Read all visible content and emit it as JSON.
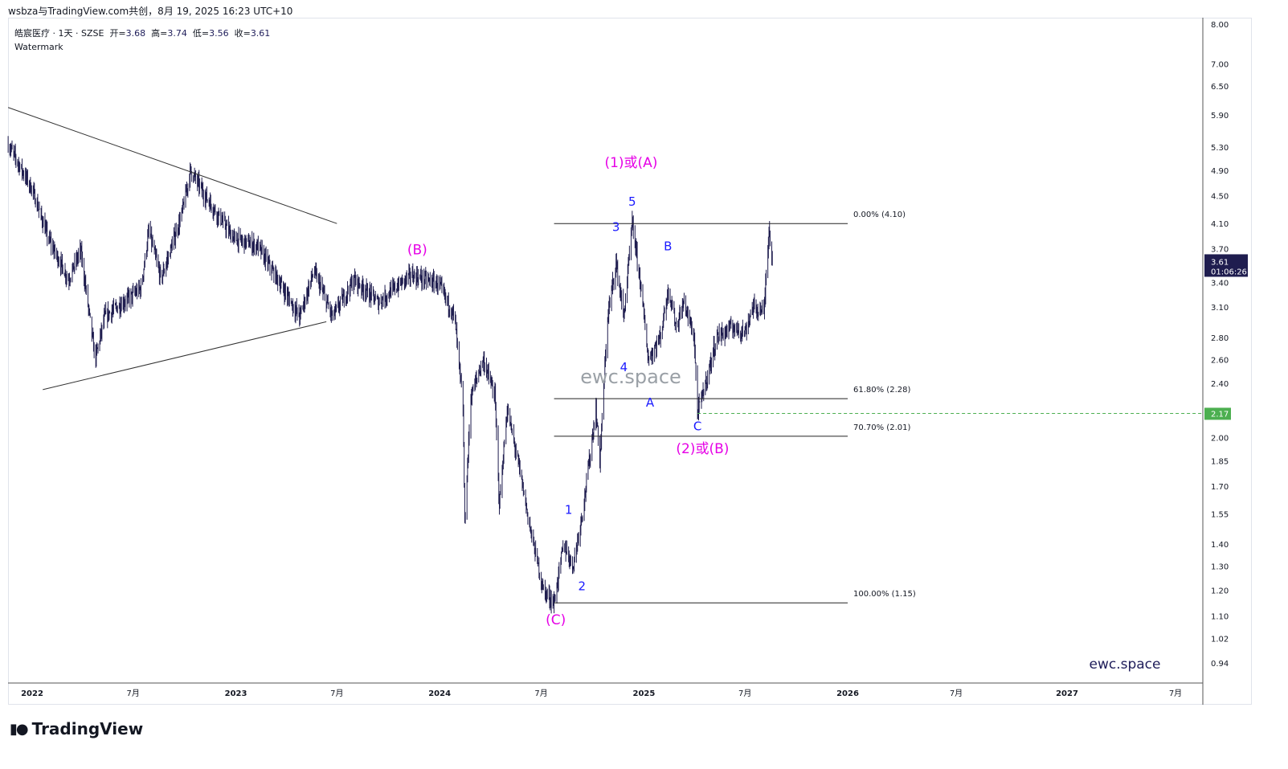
{
  "header": {
    "title": "wsbza与TradingView.com共创，8月 19, 2025 16:23 UTC+10"
  },
  "legend": {
    "symbol": "皓宸医疗 · 1天 · SZSE",
    "open_label": "开=",
    "open": "3.68",
    "high_label": "高=",
    "high": "3.74",
    "low_label": "低=",
    "low": "3.56",
    "close_label": "收=",
    "close": "3.61",
    "watermark_label": "Watermark"
  },
  "price_badge": {
    "price": "3.61",
    "countdown": "01:06:26",
    "color": "#1f1d4f"
  },
  "level_badge": {
    "price": "2.17",
    "color": "#4caf50"
  },
  "footer": {
    "brand": "TradingView"
  },
  "chart_data": {
    "type": "candlestick",
    "y_scale": "log",
    "ylim": [
      0.94,
      8.0
    ],
    "y_ticks": [
      "8.00",
      "7.00",
      "6.50",
      "5.90",
      "5.30",
      "4.90",
      "4.50",
      "4.10",
      "3.70",
      "3.40",
      "3.10",
      "2.80",
      "2.60",
      "2.40",
      "2.00",
      "1.85",
      "1.70",
      "1.55",
      "1.40",
      "1.30",
      "1.20",
      "1.10",
      "1.02",
      "0.94"
    ],
    "x_ticks": [
      {
        "label": "2022",
        "date": "2022-01-01",
        "bold": true
      },
      {
        "label": "7月",
        "date": "2022-07-01"
      },
      {
        "label": "2023",
        "date": "2023-01-01",
        "bold": true
      },
      {
        "label": "7月",
        "date": "2023-07-01"
      },
      {
        "label": "2024",
        "date": "2024-01-01",
        "bold": true
      },
      {
        "label": "7月",
        "date": "2024-07-01"
      },
      {
        "label": "2025",
        "date": "2025-01-01",
        "bold": true
      },
      {
        "label": "7月",
        "date": "2025-07-01"
      },
      {
        "label": "2026",
        "date": "2026-01-01",
        "bold": true
      },
      {
        "label": "7月",
        "date": "2026-07-01"
      },
      {
        "label": "2027",
        "date": "2027-01-01",
        "bold": true
      },
      {
        "label": "7月",
        "date": "2027-07-01"
      }
    ],
    "price_path": [
      [
        "2021-11-19",
        5.35
      ],
      [
        "2022-01-01",
        4.6
      ],
      [
        "2022-01-30",
        3.9
      ],
      [
        "2022-03-07",
        3.4
      ],
      [
        "2022-03-29",
        3.75
      ],
      [
        "2022-04-24",
        2.6
      ],
      [
        "2022-05-11",
        3.0
      ],
      [
        "2022-07-15",
        3.3
      ],
      [
        "2022-07-29",
        4.0
      ],
      [
        "2022-08-20",
        3.4
      ],
      [
        "2022-09-25",
        4.2
      ],
      [
        "2022-10-12",
        4.9
      ],
      [
        "2022-11-07",
        4.5
      ],
      [
        "2022-12-28",
        3.9
      ],
      [
        "2023-02-09",
        3.8
      ],
      [
        "2023-03-17",
        3.4
      ],
      [
        "2023-04-25",
        3.0
      ],
      [
        "2023-05-21",
        3.5
      ],
      [
        "2023-06-23",
        3.0
      ],
      [
        "2023-08-01",
        3.4
      ],
      [
        "2023-09-13",
        3.15
      ],
      [
        "2023-11-10",
        3.45
      ],
      [
        "2023-12-30",
        3.35
      ],
      [
        "2024-01-28",
        3.0
      ],
      [
        "2024-02-12",
        2.2
      ],
      [
        "2024-02-15",
        1.5
      ],
      [
        "2024-02-26",
        2.3
      ],
      [
        "2024-03-19",
        2.6
      ],
      [
        "2024-04-09",
        2.3
      ],
      [
        "2024-04-17",
        1.6
      ],
      [
        "2024-05-01",
        2.2
      ],
      [
        "2024-05-23",
        1.8
      ],
      [
        "2024-06-13",
        1.45
      ],
      [
        "2024-07-05",
        1.2
      ],
      [
        "2024-07-24",
        1.15
      ],
      [
        "2024-08-10",
        1.4
      ],
      [
        "2024-08-27",
        1.3
      ],
      [
        "2024-09-15",
        1.6
      ],
      [
        "2024-10-07",
        2.2
      ],
      [
        "2024-10-14",
        1.85
      ],
      [
        "2024-10-28",
        3.0
      ],
      [
        "2024-11-12",
        3.6
      ],
      [
        "2024-11-26",
        3.0
      ],
      [
        "2024-12-11",
        4.1
      ],
      [
        "2024-12-25",
        3.4
      ],
      [
        "2025-01-09",
        2.6
      ],
      [
        "2025-01-30",
        2.8
      ],
      [
        "2025-02-14",
        3.3
      ],
      [
        "2025-02-28",
        2.9
      ],
      [
        "2025-03-14",
        3.15
      ],
      [
        "2025-04-01",
        2.8
      ],
      [
        "2025-04-07",
        2.17
      ],
      [
        "2025-04-27",
        2.5
      ],
      [
        "2025-05-11",
        2.8
      ],
      [
        "2025-06-09",
        2.9
      ],
      [
        "2025-07-01",
        2.85
      ],
      [
        "2025-07-15",
        3.1
      ],
      [
        "2025-08-04",
        3.05
      ],
      [
        "2025-08-13",
        4.05
      ],
      [
        "2025-08-19",
        3.61
      ]
    ],
    "trendlines": [
      {
        "from": [
          "2021-11-19",
          6.05
        ],
        "to": [
          "2023-07-01",
          4.1
        ]
      },
      {
        "from": [
          "2022-01-20",
          2.35
        ],
        "to": [
          "2023-06-12",
          2.95
        ]
      }
    ],
    "fibonacci": {
      "from": "2024-07-24",
      "to": "2026-01-01",
      "levels": [
        {
          "label": "0.00% (4.10)",
          "price": 4.1
        },
        {
          "label": "61.80% (2.28)",
          "price": 2.28
        },
        {
          "label": "70.70% (2.01)",
          "price": 2.01
        },
        {
          "label": "100.00% (1.15)",
          "price": 1.15
        }
      ]
    },
    "horizontal_level": {
      "price": 2.17,
      "from": "2025-04-07",
      "style": "dashed",
      "color": "#4caf50"
    },
    "annotations": [
      {
        "text": "(1)或(A)",
        "date": "2024-12-09",
        "price": 4.95,
        "color": "#e600e6"
      },
      {
        "text": "(B)",
        "date": "2023-11-22",
        "price": 3.7,
        "color": "#e600e6"
      },
      {
        "text": "(C)",
        "date": "2024-07-27",
        "price": 1.07,
        "color": "#e600e6"
      },
      {
        "text": "(2)或(B)",
        "date": "2025-04-16",
        "price": 1.9,
        "color": "#e600e6"
      },
      {
        "text": "5",
        "date": "2024-12-11",
        "price": 4.35,
        "color": "#1a1aff"
      },
      {
        "text": "3",
        "date": "2024-11-12",
        "price": 4.0,
        "color": "#1a1aff"
      },
      {
        "text": "B",
        "date": "2025-02-13",
        "price": 3.75,
        "color": "#1a1aff"
      },
      {
        "text": "4",
        "date": "2024-11-26",
        "price": 2.5,
        "color": "#1a1aff"
      },
      {
        "text": "A",
        "date": "2025-01-12",
        "price": 2.22,
        "color": "#1a1aff"
      },
      {
        "text": "C",
        "date": "2025-04-07",
        "price": 2.05,
        "color": "#1a1aff"
      },
      {
        "text": "1",
        "date": "2024-08-19",
        "price": 1.55,
        "color": "#1a1aff"
      },
      {
        "text": "2",
        "date": "2024-09-12",
        "price": 1.2,
        "color": "#1a1aff"
      }
    ],
    "watermarks": [
      {
        "text": "ewc.space",
        "color": "#9aa0a6"
      },
      {
        "text": "ewc.space",
        "color": "#1f1d5a"
      }
    ]
  }
}
